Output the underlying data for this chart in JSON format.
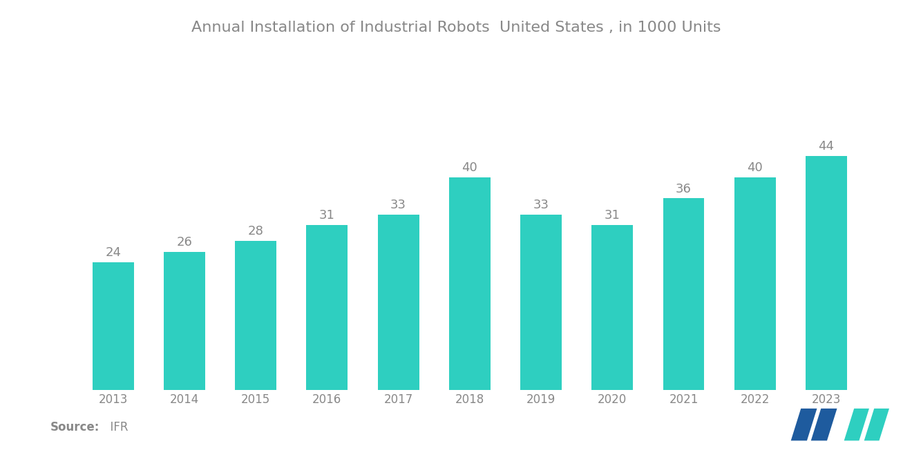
{
  "title": "Annual Installation of Industrial Robots  United States , in 1000 Units",
  "years": [
    2013,
    2014,
    2015,
    2016,
    2017,
    2018,
    2019,
    2020,
    2021,
    2022,
    2023
  ],
  "values": [
    24,
    26,
    28,
    31,
    33,
    40,
    33,
    31,
    36,
    40,
    44
  ],
  "bar_color": "#2ECFC0",
  "label_color": "#888888",
  "title_color": "#888888",
  "background_color": "#ffffff",
  "source_bold": "Source:",
  "source_light": "  IFR",
  "ylim": [
    0,
    56
  ],
  "bar_width": 0.58,
  "title_fontsize": 16,
  "label_fontsize": 13,
  "tick_fontsize": 12,
  "source_fontsize": 12,
  "logo_color1": "#1E5B9E",
  "logo_color2": "#2ECFC0"
}
